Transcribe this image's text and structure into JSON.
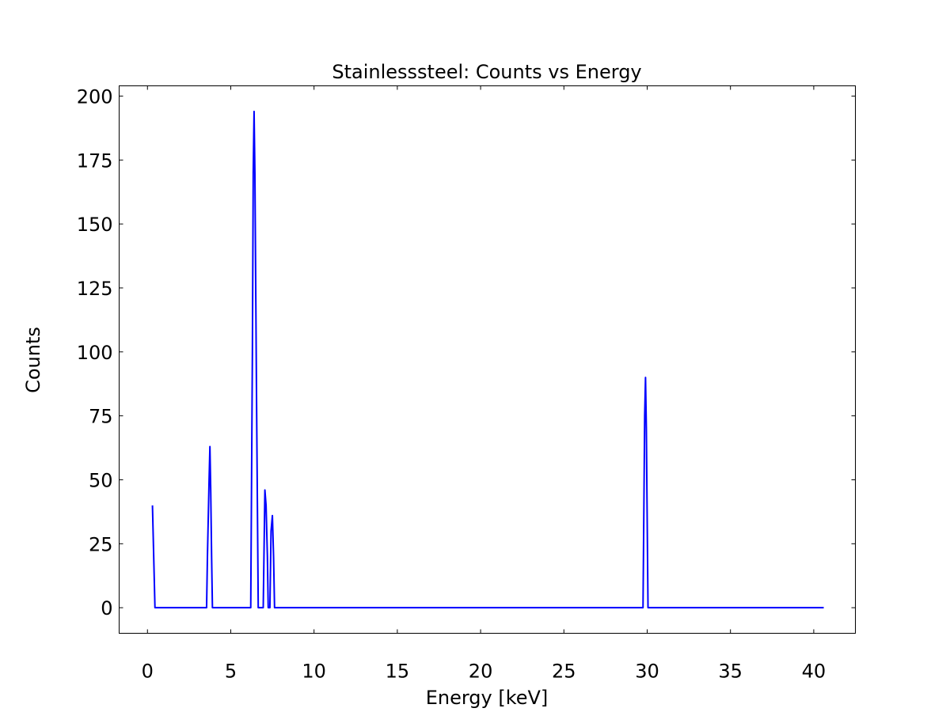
{
  "chart_data": {
    "type": "line",
    "title": "Stainlesssteel: Counts vs Energy",
    "xlabel": "Energy [keV]",
    "ylabel": "Counts",
    "xlim": [
      -1.7,
      42.5
    ],
    "ylim": [
      -10,
      204
    ],
    "xticks": [
      0,
      5,
      10,
      15,
      20,
      25,
      30,
      35,
      40
    ],
    "yticks": [
      0,
      25,
      50,
      75,
      100,
      125,
      150,
      175,
      200
    ],
    "grid": false,
    "legend": "none",
    "series": [
      {
        "color": "#0000ff",
        "points": [
          [
            0.3,
            40
          ],
          [
            0.45,
            0
          ],
          [
            3.55,
            0
          ],
          [
            3.6,
            20
          ],
          [
            3.7,
            50
          ],
          [
            3.75,
            63
          ],
          [
            3.8,
            45
          ],
          [
            3.85,
            20
          ],
          [
            3.9,
            0
          ],
          [
            6.2,
            0
          ],
          [
            6.3,
            100
          ],
          [
            6.35,
            170
          ],
          [
            6.4,
            194
          ],
          [
            6.45,
            170
          ],
          [
            6.55,
            80
          ],
          [
            6.65,
            0
          ],
          [
            6.95,
            0
          ],
          [
            7.05,
            46
          ],
          [
            7.12,
            40
          ],
          [
            7.2,
            20
          ],
          [
            7.25,
            0
          ],
          [
            7.35,
            0
          ],
          [
            7.42,
            30
          ],
          [
            7.5,
            36
          ],
          [
            7.57,
            20
          ],
          [
            7.63,
            0
          ],
          [
            29.75,
            0
          ],
          [
            29.85,
            75
          ],
          [
            29.9,
            90
          ],
          [
            29.95,
            70
          ],
          [
            30.05,
            0
          ],
          [
            40.6,
            0
          ]
        ]
      }
    ]
  }
}
